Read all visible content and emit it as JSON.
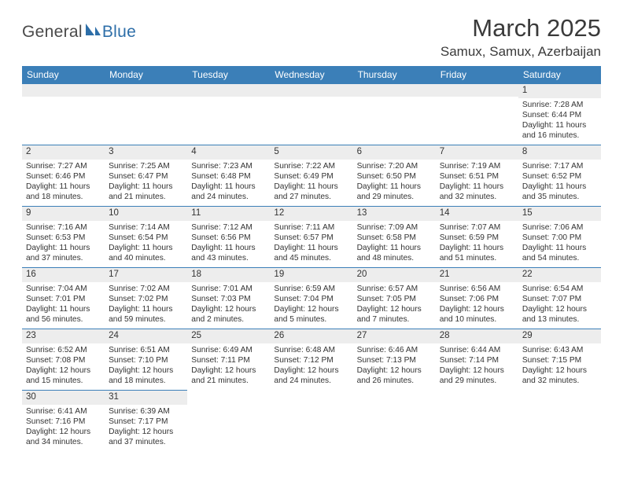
{
  "logo": {
    "text_general": "General",
    "text_blue": "Blue",
    "sail_color": "#2d6ea8",
    "accent_color": "#3b7fb8"
  },
  "header": {
    "month_title": "March 2025",
    "location": "Samux, Samux, Azerbaijan"
  },
  "calendar": {
    "header_bg": "#3b7fb8",
    "header_fg": "#ffffff",
    "daynum_bg": "#ededed",
    "border_color": "#3b7fb8",
    "text_color": "#333333",
    "days_of_week": [
      "Sunday",
      "Monday",
      "Tuesday",
      "Wednesday",
      "Thursday",
      "Friday",
      "Saturday"
    ],
    "weeks": [
      [
        null,
        null,
        null,
        null,
        null,
        null,
        {
          "n": "1",
          "sr": "Sunrise: 7:28 AM",
          "ss": "Sunset: 6:44 PM",
          "d1": "Daylight: 11 hours",
          "d2": "and 16 minutes."
        }
      ],
      [
        {
          "n": "2",
          "sr": "Sunrise: 7:27 AM",
          "ss": "Sunset: 6:46 PM",
          "d1": "Daylight: 11 hours",
          "d2": "and 18 minutes."
        },
        {
          "n": "3",
          "sr": "Sunrise: 7:25 AM",
          "ss": "Sunset: 6:47 PM",
          "d1": "Daylight: 11 hours",
          "d2": "and 21 minutes."
        },
        {
          "n": "4",
          "sr": "Sunrise: 7:23 AM",
          "ss": "Sunset: 6:48 PM",
          "d1": "Daylight: 11 hours",
          "d2": "and 24 minutes."
        },
        {
          "n": "5",
          "sr": "Sunrise: 7:22 AM",
          "ss": "Sunset: 6:49 PM",
          "d1": "Daylight: 11 hours",
          "d2": "and 27 minutes."
        },
        {
          "n": "6",
          "sr": "Sunrise: 7:20 AM",
          "ss": "Sunset: 6:50 PM",
          "d1": "Daylight: 11 hours",
          "d2": "and 29 minutes."
        },
        {
          "n": "7",
          "sr": "Sunrise: 7:19 AM",
          "ss": "Sunset: 6:51 PM",
          "d1": "Daylight: 11 hours",
          "d2": "and 32 minutes."
        },
        {
          "n": "8",
          "sr": "Sunrise: 7:17 AM",
          "ss": "Sunset: 6:52 PM",
          "d1": "Daylight: 11 hours",
          "d2": "and 35 minutes."
        }
      ],
      [
        {
          "n": "9",
          "sr": "Sunrise: 7:16 AM",
          "ss": "Sunset: 6:53 PM",
          "d1": "Daylight: 11 hours",
          "d2": "and 37 minutes."
        },
        {
          "n": "10",
          "sr": "Sunrise: 7:14 AM",
          "ss": "Sunset: 6:54 PM",
          "d1": "Daylight: 11 hours",
          "d2": "and 40 minutes."
        },
        {
          "n": "11",
          "sr": "Sunrise: 7:12 AM",
          "ss": "Sunset: 6:56 PM",
          "d1": "Daylight: 11 hours",
          "d2": "and 43 minutes."
        },
        {
          "n": "12",
          "sr": "Sunrise: 7:11 AM",
          "ss": "Sunset: 6:57 PM",
          "d1": "Daylight: 11 hours",
          "d2": "and 45 minutes."
        },
        {
          "n": "13",
          "sr": "Sunrise: 7:09 AM",
          "ss": "Sunset: 6:58 PM",
          "d1": "Daylight: 11 hours",
          "d2": "and 48 minutes."
        },
        {
          "n": "14",
          "sr": "Sunrise: 7:07 AM",
          "ss": "Sunset: 6:59 PM",
          "d1": "Daylight: 11 hours",
          "d2": "and 51 minutes."
        },
        {
          "n": "15",
          "sr": "Sunrise: 7:06 AM",
          "ss": "Sunset: 7:00 PM",
          "d1": "Daylight: 11 hours",
          "d2": "and 54 minutes."
        }
      ],
      [
        {
          "n": "16",
          "sr": "Sunrise: 7:04 AM",
          "ss": "Sunset: 7:01 PM",
          "d1": "Daylight: 11 hours",
          "d2": "and 56 minutes."
        },
        {
          "n": "17",
          "sr": "Sunrise: 7:02 AM",
          "ss": "Sunset: 7:02 PM",
          "d1": "Daylight: 11 hours",
          "d2": "and 59 minutes."
        },
        {
          "n": "18",
          "sr": "Sunrise: 7:01 AM",
          "ss": "Sunset: 7:03 PM",
          "d1": "Daylight: 12 hours",
          "d2": "and 2 minutes."
        },
        {
          "n": "19",
          "sr": "Sunrise: 6:59 AM",
          "ss": "Sunset: 7:04 PM",
          "d1": "Daylight: 12 hours",
          "d2": "and 5 minutes."
        },
        {
          "n": "20",
          "sr": "Sunrise: 6:57 AM",
          "ss": "Sunset: 7:05 PM",
          "d1": "Daylight: 12 hours",
          "d2": "and 7 minutes."
        },
        {
          "n": "21",
          "sr": "Sunrise: 6:56 AM",
          "ss": "Sunset: 7:06 PM",
          "d1": "Daylight: 12 hours",
          "d2": "and 10 minutes."
        },
        {
          "n": "22",
          "sr": "Sunrise: 6:54 AM",
          "ss": "Sunset: 7:07 PM",
          "d1": "Daylight: 12 hours",
          "d2": "and 13 minutes."
        }
      ],
      [
        {
          "n": "23",
          "sr": "Sunrise: 6:52 AM",
          "ss": "Sunset: 7:08 PM",
          "d1": "Daylight: 12 hours",
          "d2": "and 15 minutes."
        },
        {
          "n": "24",
          "sr": "Sunrise: 6:51 AM",
          "ss": "Sunset: 7:10 PM",
          "d1": "Daylight: 12 hours",
          "d2": "and 18 minutes."
        },
        {
          "n": "25",
          "sr": "Sunrise: 6:49 AM",
          "ss": "Sunset: 7:11 PM",
          "d1": "Daylight: 12 hours",
          "d2": "and 21 minutes."
        },
        {
          "n": "26",
          "sr": "Sunrise: 6:48 AM",
          "ss": "Sunset: 7:12 PM",
          "d1": "Daylight: 12 hours",
          "d2": "and 24 minutes."
        },
        {
          "n": "27",
          "sr": "Sunrise: 6:46 AM",
          "ss": "Sunset: 7:13 PM",
          "d1": "Daylight: 12 hours",
          "d2": "and 26 minutes."
        },
        {
          "n": "28",
          "sr": "Sunrise: 6:44 AM",
          "ss": "Sunset: 7:14 PM",
          "d1": "Daylight: 12 hours",
          "d2": "and 29 minutes."
        },
        {
          "n": "29",
          "sr": "Sunrise: 6:43 AM",
          "ss": "Sunset: 7:15 PM",
          "d1": "Daylight: 12 hours",
          "d2": "and 32 minutes."
        }
      ],
      [
        {
          "n": "30",
          "sr": "Sunrise: 6:41 AM",
          "ss": "Sunset: 7:16 PM",
          "d1": "Daylight: 12 hours",
          "d2": "and 34 minutes."
        },
        {
          "n": "31",
          "sr": "Sunrise: 6:39 AM",
          "ss": "Sunset: 7:17 PM",
          "d1": "Daylight: 12 hours",
          "d2": "and 37 minutes."
        },
        null,
        null,
        null,
        null,
        null
      ]
    ]
  }
}
